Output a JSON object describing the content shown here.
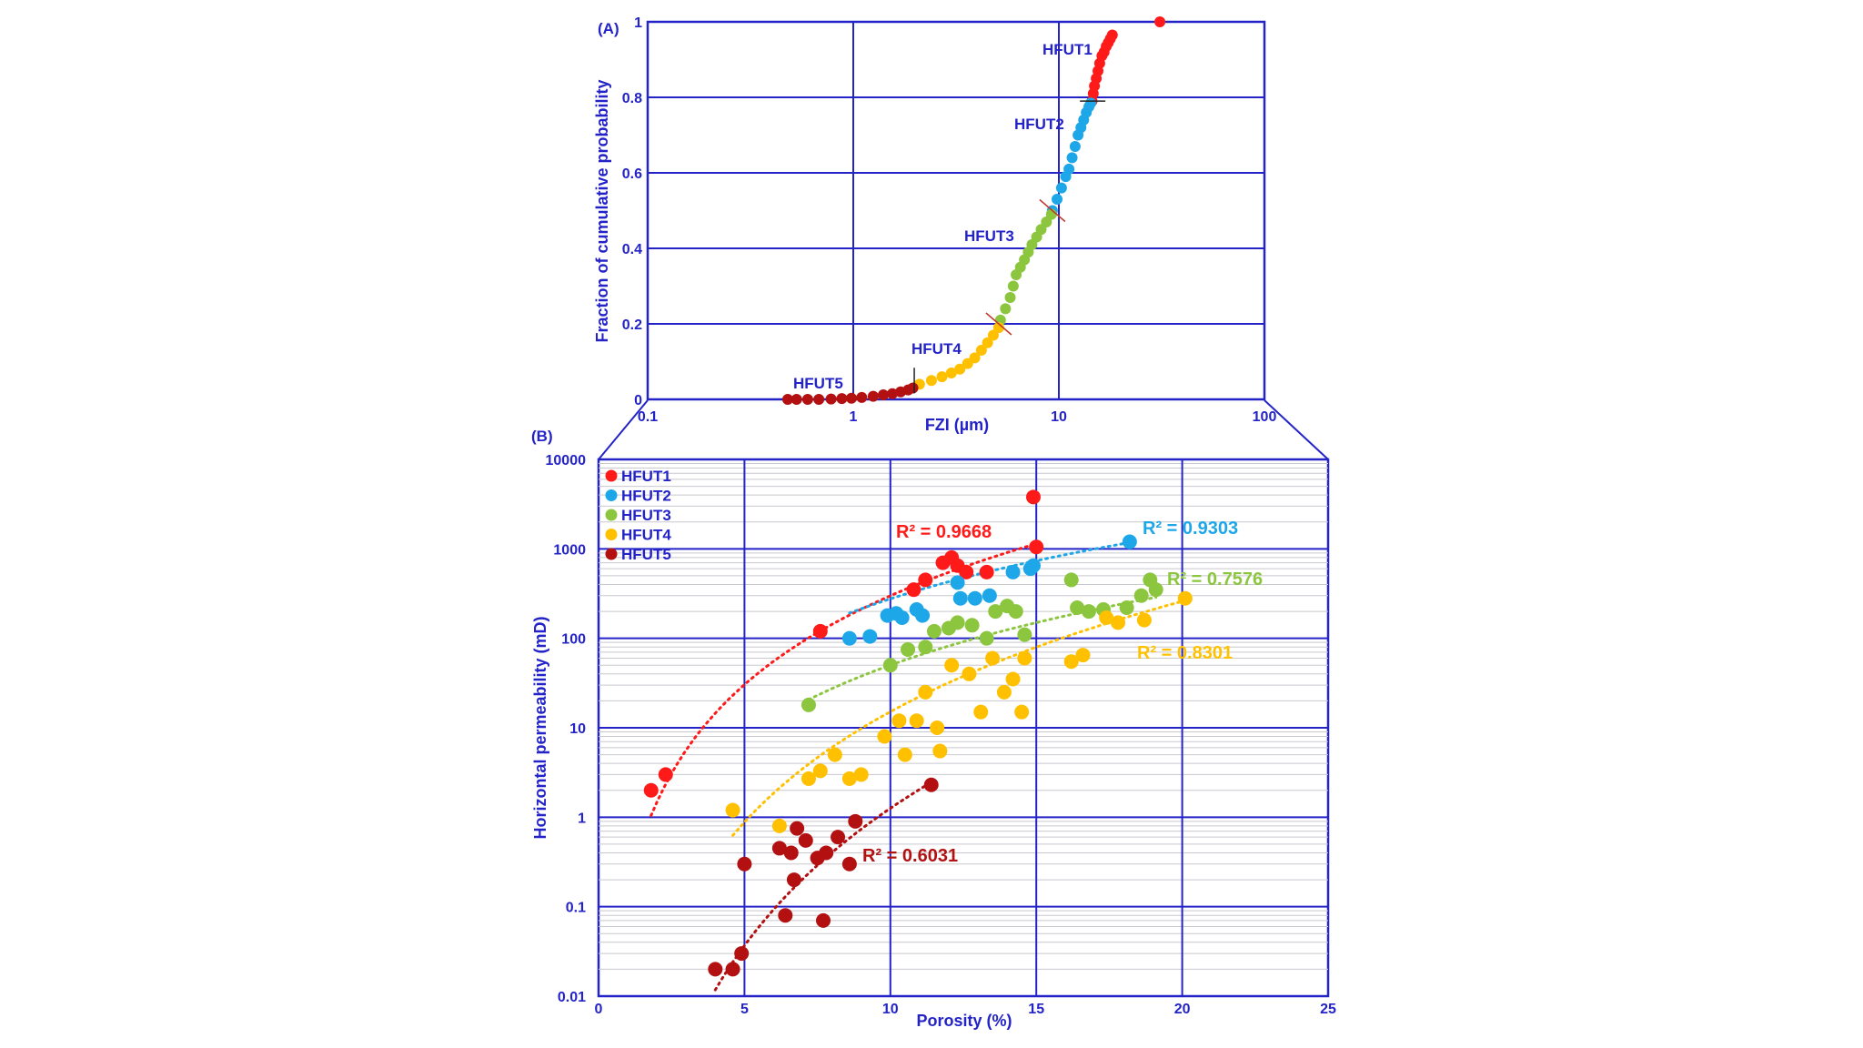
{
  "colors": {
    "axis": "#2323c8",
    "HFUT1": "#ff1a1a",
    "HFUT2": "#1ea7e8",
    "HFUT3": "#8cc63f",
    "HFUT4": "#ffc000",
    "HFUT5": "#b31111",
    "minor_grid": "#c8c8cf"
  },
  "chart_data": [
    {
      "panel_label": "(A)",
      "type": "scatter",
      "xlabel": "FZI (µm)",
      "ylabel": "Fraction of cumulative probability",
      "x_scale": "log",
      "xlim": [
        0.1,
        100
      ],
      "ylim": [
        0,
        1
      ],
      "x_ticks": [
        "0.1",
        "1",
        "10",
        "100"
      ],
      "y_ticks": [
        "0",
        "0.2",
        "0.4",
        "0.6",
        "0.8",
        "1"
      ],
      "grid": true,
      "groups": [
        {
          "name": "HFUT1",
          "label": "HFUT1",
          "x": [
            14.5,
            14.7,
            14.9,
            15.2,
            15.5,
            15.8,
            16.2,
            16.6,
            17.0,
            17.4,
            17.8,
            18.2,
            31.0
          ],
          "y": [
            0.79,
            0.81,
            0.83,
            0.85,
            0.87,
            0.89,
            0.91,
            0.92,
            0.935,
            0.945,
            0.955,
            0.965,
            1.0
          ]
        },
        {
          "name": "HFUT2",
          "label": "HFUT2",
          "x": [
            9.3,
            9.8,
            10.3,
            10.8,
            11.2,
            11.6,
            12.0,
            12.4,
            12.8,
            13.2,
            13.6,
            14.0,
            14.3
          ],
          "y": [
            0.5,
            0.53,
            0.56,
            0.59,
            0.61,
            0.64,
            0.67,
            0.7,
            0.72,
            0.74,
            0.76,
            0.775,
            0.785
          ]
        },
        {
          "name": "HFUT3",
          "label": "HFUT3",
          "x": [
            5.2,
            5.5,
            5.8,
            6.0,
            6.2,
            6.5,
            6.8,
            7.1,
            7.4,
            7.8,
            8.2,
            8.7,
            9.2
          ],
          "y": [
            0.21,
            0.24,
            0.27,
            0.3,
            0.33,
            0.35,
            0.37,
            0.39,
            0.41,
            0.43,
            0.45,
            0.47,
            0.49
          ]
        },
        {
          "name": "HFUT4",
          "label": "HFUT4",
          "x": [
            2.1,
            2.4,
            2.7,
            3.0,
            3.3,
            3.6,
            3.9,
            4.2,
            4.5,
            4.8,
            5.1
          ],
          "y": [
            0.04,
            0.05,
            0.06,
            0.07,
            0.08,
            0.095,
            0.11,
            0.13,
            0.15,
            0.17,
            0.19
          ]
        },
        {
          "name": "HFUT5",
          "label": "HFUT5",
          "x": [
            0.48,
            0.53,
            0.6,
            0.68,
            0.78,
            0.88,
            0.98,
            1.1,
            1.25,
            1.4,
            1.55,
            1.7,
            1.85,
            1.95
          ],
          "y": [
            0.0,
            0.0,
            0.0,
            0.0,
            0.001,
            0.002,
            0.003,
            0.005,
            0.008,
            0.012,
            0.015,
            0.02,
            0.025,
            0.03
          ]
        }
      ]
    },
    {
      "panel_label": "(B)",
      "type": "scatter",
      "xlabel": "Porosity (%)",
      "ylabel": "Horizontal permeability (mD)",
      "y_scale": "log",
      "xlim": [
        0,
        25
      ],
      "ylim": [
        0.01,
        10000
      ],
      "x_ticks": [
        "0",
        "5",
        "10",
        "15",
        "20",
        "25"
      ],
      "y_ticks": [
        "0.01",
        "0.1",
        "1",
        "10",
        "100",
        "1000",
        "10000"
      ],
      "grid": true,
      "legend_position": "top-left",
      "series": [
        {
          "name": "HFUT1",
          "r2": "R² = 0.9668",
          "points": [
            [
              1.8,
              2.0
            ],
            [
              2.3,
              3.0
            ],
            [
              7.6,
              120
            ],
            [
              10.8,
              350
            ],
            [
              11.2,
              450
            ],
            [
              11.8,
              700
            ],
            [
              12.1,
              800
            ],
            [
              12.3,
              650
            ],
            [
              12.6,
              550
            ],
            [
              13.3,
              550
            ],
            [
              15.0,
              1050
            ],
            [
              14.9,
              3800
            ]
          ],
          "trend": {
            "a": 0.15,
            "b": 3.3
          }
        },
        {
          "name": "HFUT2",
          "r2": "R² = 0.9303",
          "points": [
            [
              8.6,
              100
            ],
            [
              9.3,
              105
            ],
            [
              9.9,
              180
            ],
            [
              10.2,
              190
            ],
            [
              10.4,
              170
            ],
            [
              10.9,
              210
            ],
            [
              11.1,
              180
            ],
            [
              12.3,
              420
            ],
            [
              12.4,
              280
            ],
            [
              12.9,
              280
            ],
            [
              13.4,
              300
            ],
            [
              14.2,
              550
            ],
            [
              14.8,
              600
            ],
            [
              14.9,
              650
            ],
            [
              18.2,
              1200
            ]
          ],
          "trend": {
            "a": 1.05,
            "b": 2.42
          }
        },
        {
          "name": "HFUT3",
          "r2": "R² = 0.7576",
          "points": [
            [
              7.2,
              18
            ],
            [
              10.0,
              50
            ],
            [
              10.6,
              75
            ],
            [
              11.2,
              80
            ],
            [
              11.5,
              120
            ],
            [
              12.0,
              130
            ],
            [
              12.3,
              150
            ],
            [
              12.8,
              140
            ],
            [
              13.3,
              100
            ],
            [
              13.6,
              200
            ],
            [
              14.0,
              230
            ],
            [
              14.3,
              200
            ],
            [
              14.6,
              110
            ],
            [
              16.2,
              450
            ],
            [
              16.4,
              220
            ],
            [
              16.8,
              200
            ],
            [
              17.3,
              210
            ],
            [
              18.1,
              220
            ],
            [
              18.6,
              300
            ],
            [
              18.9,
              450
            ],
            [
              19.1,
              350
            ]
          ],
          "trend": {
            "a": 0.1,
            "b": 2.7
          }
        },
        {
          "name": "HFUT4",
          "r2": "R² = 0.8301",
          "points": [
            [
              4.6,
              1.2
            ],
            [
              6.2,
              0.8
            ],
            [
              7.2,
              2.7
            ],
            [
              7.6,
              3.3
            ],
            [
              8.1,
              5.0
            ],
            [
              8.6,
              2.7
            ],
            [
              9.0,
              3.0
            ],
            [
              9.8,
              8.0
            ],
            [
              10.3,
              12
            ],
            [
              10.5,
              5.0
            ],
            [
              10.9,
              12
            ],
            [
              11.2,
              25
            ],
            [
              11.6,
              10
            ],
            [
              11.7,
              5.5
            ],
            [
              12.1,
              50
            ],
            [
              12.7,
              40
            ],
            [
              13.1,
              15
            ],
            [
              13.5,
              60
            ],
            [
              13.9,
              25
            ],
            [
              14.2,
              35
            ],
            [
              14.5,
              15
            ],
            [
              14.6,
              60
            ],
            [
              16.2,
              55
            ],
            [
              16.6,
              65
            ],
            [
              17.4,
              170
            ],
            [
              17.8,
              150
            ],
            [
              18.7,
              160
            ],
            [
              20.1,
              280
            ]
          ],
          "trend": {
            "a": 0.0012,
            "b": 4.1
          }
        },
        {
          "name": "HFUT5",
          "r2": "R² = 0.6031",
          "points": [
            [
              4.0,
              0.02
            ],
            [
              4.6,
              0.02
            ],
            [
              4.9,
              0.03
            ],
            [
              5.0,
              0.3
            ],
            [
              6.2,
              0.45
            ],
            [
              6.4,
              0.08
            ],
            [
              6.6,
              0.4
            ],
            [
              6.7,
              0.2
            ],
            [
              6.8,
              0.75
            ],
            [
              7.1,
              0.55
            ],
            [
              7.5,
              0.35
            ],
            [
              7.7,
              0.07
            ],
            [
              7.8,
              0.4
            ],
            [
              8.2,
              0.6
            ],
            [
              8.6,
              0.3
            ],
            [
              8.8,
              0.9
            ],
            [
              11.4,
              2.3
            ]
          ],
          "trend": {
            "a": 1e-05,
            "b": 5.1
          }
        }
      ]
    }
  ]
}
